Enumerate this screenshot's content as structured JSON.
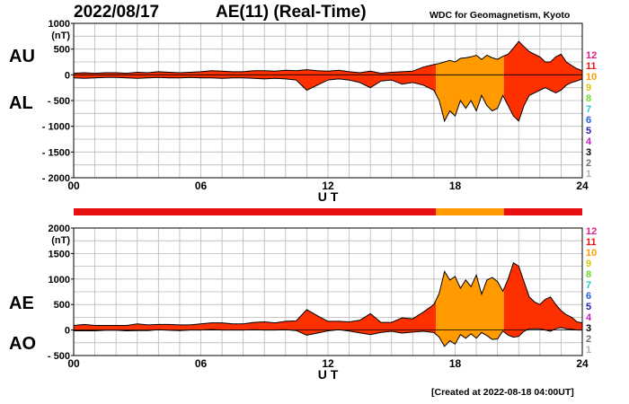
{
  "header": {
    "date": "2022/08/17",
    "title": "AE(11) (Real-Time)",
    "source": "WDC for Geomagnetism, Kyoto"
  },
  "footer": {
    "created": "[Created at 2022-08-18 04:00UT]"
  },
  "labels": {
    "au": "AU",
    "al": "AL",
    "ae": "AE",
    "ao": "AO"
  },
  "legend": [
    {
      "label": "12",
      "color": "#e0208a"
    },
    {
      "label": "11",
      "color": "#e81010"
    },
    {
      "label": "10",
      "color": "#ff9a00"
    },
    {
      "label": "9",
      "color": "#d8c800"
    },
    {
      "label": "8",
      "color": "#66dd22"
    },
    {
      "label": "7",
      "color": "#22cccc"
    },
    {
      "label": "6",
      "color": "#2060e0"
    },
    {
      "label": "5",
      "color": "#2020b0"
    },
    {
      "label": "4",
      "color": "#c020c0"
    },
    {
      "label": "3",
      "color": "#000000"
    },
    {
      "label": "2",
      "color": "#707070"
    },
    {
      "label": "1",
      "color": "#b0b0b0"
    }
  ],
  "chart_data": [
    {
      "type": "area",
      "name": "AU/AL",
      "unit": "(nT)",
      "xlabel": "U T",
      "xlim": [
        0,
        24
      ],
      "xticks": [
        "00",
        "06",
        "12",
        "18",
        "24"
      ],
      "ylim": [
        -2000,
        1000
      ],
      "yticks": [
        1000,
        500,
        0,
        -500,
        -1000,
        -1500,
        -2000
      ],
      "ytick_labels": [
        "1000",
        "500",
        "0",
        "- 500",
        "- 1000",
        "- 1500",
        "- 2000"
      ],
      "series": [
        {
          "name": "AU",
          "x": [
            0,
            0.5,
            1,
            1.5,
            2,
            2.5,
            3,
            3.5,
            4,
            4.5,
            5,
            5.5,
            6,
            6.5,
            7,
            7.5,
            8,
            8.5,
            9,
            9.5,
            10,
            10.5,
            11,
            11.5,
            12,
            12.5,
            13,
            13.5,
            14,
            14.5,
            15,
            15.5,
            16,
            16.5,
            17,
            17.25,
            17.5,
            17.75,
            18,
            18.25,
            18.5,
            18.75,
            19,
            19.25,
            19.5,
            19.75,
            20,
            20.25,
            20.5,
            20.75,
            21,
            21.25,
            21.5,
            21.75,
            22,
            22.25,
            22.5,
            22.75,
            23,
            23.25,
            23.5,
            23.75,
            24
          ],
          "values": [
            30,
            40,
            30,
            40,
            40,
            30,
            50,
            40,
            60,
            50,
            40,
            50,
            60,
            80,
            70,
            60,
            60,
            80,
            80,
            70,
            90,
            80,
            100,
            80,
            70,
            90,
            60,
            40,
            70,
            30,
            50,
            60,
            70,
            150,
            200,
            220,
            250,
            280,
            250,
            320,
            330,
            350,
            380,
            300,
            380,
            330,
            300,
            360,
            400,
            520,
            650,
            550,
            450,
            400,
            350,
            250,
            250,
            350,
            400,
            250,
            180,
            120,
            80
          ]
        },
        {
          "name": "AL",
          "x": [
            0,
            0.5,
            1,
            1.5,
            2,
            2.5,
            3,
            3.5,
            4,
            4.5,
            5,
            5.5,
            6,
            6.5,
            7,
            7.5,
            8,
            8.5,
            9,
            9.5,
            10,
            10.5,
            11,
            11.5,
            12,
            12.5,
            13,
            13.5,
            14,
            14.5,
            15,
            15.5,
            16,
            16.5,
            17,
            17.25,
            17.5,
            17.75,
            18,
            18.25,
            18.5,
            18.75,
            19,
            19.25,
            19.5,
            19.75,
            20,
            20.25,
            20.5,
            20.75,
            21,
            21.25,
            21.5,
            21.75,
            22,
            22.25,
            22.5,
            22.75,
            23,
            23.25,
            23.5,
            23.75,
            24
          ],
          "values": [
            -60,
            -70,
            -60,
            -50,
            -50,
            -60,
            -70,
            -60,
            -50,
            -60,
            -60,
            -50,
            -60,
            -60,
            -70,
            -60,
            -60,
            -70,
            -80,
            -70,
            -80,
            -100,
            -300,
            -200,
            -100,
            -80,
            -100,
            -150,
            -250,
            -120,
            -100,
            -180,
            -150,
            -200,
            -300,
            -500,
            -900,
            -700,
            -800,
            -500,
            -650,
            -500,
            -700,
            -400,
            -600,
            -700,
            -650,
            -400,
            -600,
            -800,
            -900,
            -600,
            -400,
            -350,
            -300,
            -250,
            -300,
            -350,
            -300,
            -200,
            -150,
            -120,
            -80
          ]
        }
      ]
    },
    {
      "type": "area",
      "name": "AE/AO",
      "unit": "(nT)",
      "xlabel": "U T",
      "xlim": [
        0,
        24
      ],
      "xticks": [
        "00",
        "06",
        "12",
        "18",
        "24"
      ],
      "ylim": [
        -500,
        2000
      ],
      "yticks": [
        2000,
        1500,
        1000,
        500,
        0,
        -500
      ],
      "ytick_labels": [
        "2000",
        "1500",
        "1000",
        "500",
        "0",
        "- 500"
      ],
      "series": [
        {
          "name": "AE",
          "x": [
            0,
            0.5,
            1,
            1.5,
            2,
            2.5,
            3,
            3.5,
            4,
            4.5,
            5,
            5.5,
            6,
            6.5,
            7,
            7.5,
            8,
            8.5,
            9,
            9.5,
            10,
            10.5,
            11,
            11.5,
            12,
            12.5,
            13,
            13.5,
            14,
            14.5,
            15,
            15.5,
            16,
            16.5,
            17,
            17.25,
            17.5,
            17.75,
            18,
            18.25,
            18.5,
            18.75,
            19,
            19.25,
            19.5,
            19.75,
            20,
            20.25,
            20.5,
            20.75,
            21,
            21.25,
            21.5,
            21.75,
            22,
            22.25,
            22.5,
            22.75,
            23,
            23.25,
            23.5,
            23.75,
            24
          ],
          "values": [
            90,
            110,
            90,
            90,
            90,
            90,
            120,
            100,
            110,
            110,
            100,
            100,
            120,
            140,
            140,
            120,
            120,
            150,
            160,
            140,
            170,
            180,
            400,
            280,
            170,
            170,
            160,
            190,
            320,
            150,
            150,
            240,
            220,
            350,
            500,
            720,
            1150,
            980,
            1050,
            820,
            980,
            850,
            1080,
            700,
            980,
            1030,
            950,
            760,
            1000,
            1320,
            1250,
            950,
            650,
            550,
            500,
            600,
            650,
            500,
            380,
            300,
            250,
            160,
            140
          ]
        },
        {
          "name": "AO",
          "x": [
            0,
            0.5,
            1,
            1.5,
            2,
            2.5,
            3,
            3.5,
            4,
            4.5,
            5,
            5.5,
            6,
            6.5,
            7,
            7.5,
            8,
            8.5,
            9,
            9.5,
            10,
            10.5,
            11,
            11.5,
            12,
            12.5,
            13,
            13.5,
            14,
            14.5,
            15,
            15.5,
            16,
            16.5,
            17,
            17.25,
            17.5,
            17.75,
            18,
            18.25,
            18.5,
            18.75,
            19,
            19.25,
            19.5,
            19.75,
            20,
            20.25,
            20.5,
            20.75,
            21,
            21.25,
            21.5,
            21.75,
            22,
            22.25,
            22.5,
            22.75,
            23,
            23.25,
            23.5,
            23.75,
            24
          ],
          "values": [
            -15,
            -15,
            -15,
            -5,
            -5,
            -15,
            -10,
            -10,
            5,
            -5,
            -10,
            0,
            0,
            10,
            0,
            0,
            0,
            5,
            0,
            0,
            5,
            -10,
            -100,
            -60,
            -15,
            5,
            -20,
            -55,
            -90,
            -45,
            -25,
            -60,
            -40,
            -25,
            -50,
            -140,
            -320,
            -210,
            -275,
            -90,
            -160,
            -75,
            -160,
            -50,
            -110,
            -185,
            -175,
            -20,
            -100,
            -140,
            -125,
            -25,
            25,
            25,
            25,
            0,
            -25,
            25,
            50,
            25,
            15,
            0,
            0
          ]
        }
      ]
    }
  ],
  "station_bar": [
    {
      "from": 0,
      "to": 17.1,
      "color": "#e81010"
    },
    {
      "from": 17.1,
      "to": 20.3,
      "color": "#ff9a00"
    },
    {
      "from": 20.3,
      "to": 24,
      "color": "#e81010"
    }
  ],
  "fill_segments": [
    {
      "from": 0,
      "to": 17.1,
      "color": "#ff3000"
    },
    {
      "from": 17.1,
      "to": 20.3,
      "color": "#ff9a00"
    },
    {
      "from": 20.3,
      "to": 24,
      "color": "#ff3000"
    }
  ]
}
